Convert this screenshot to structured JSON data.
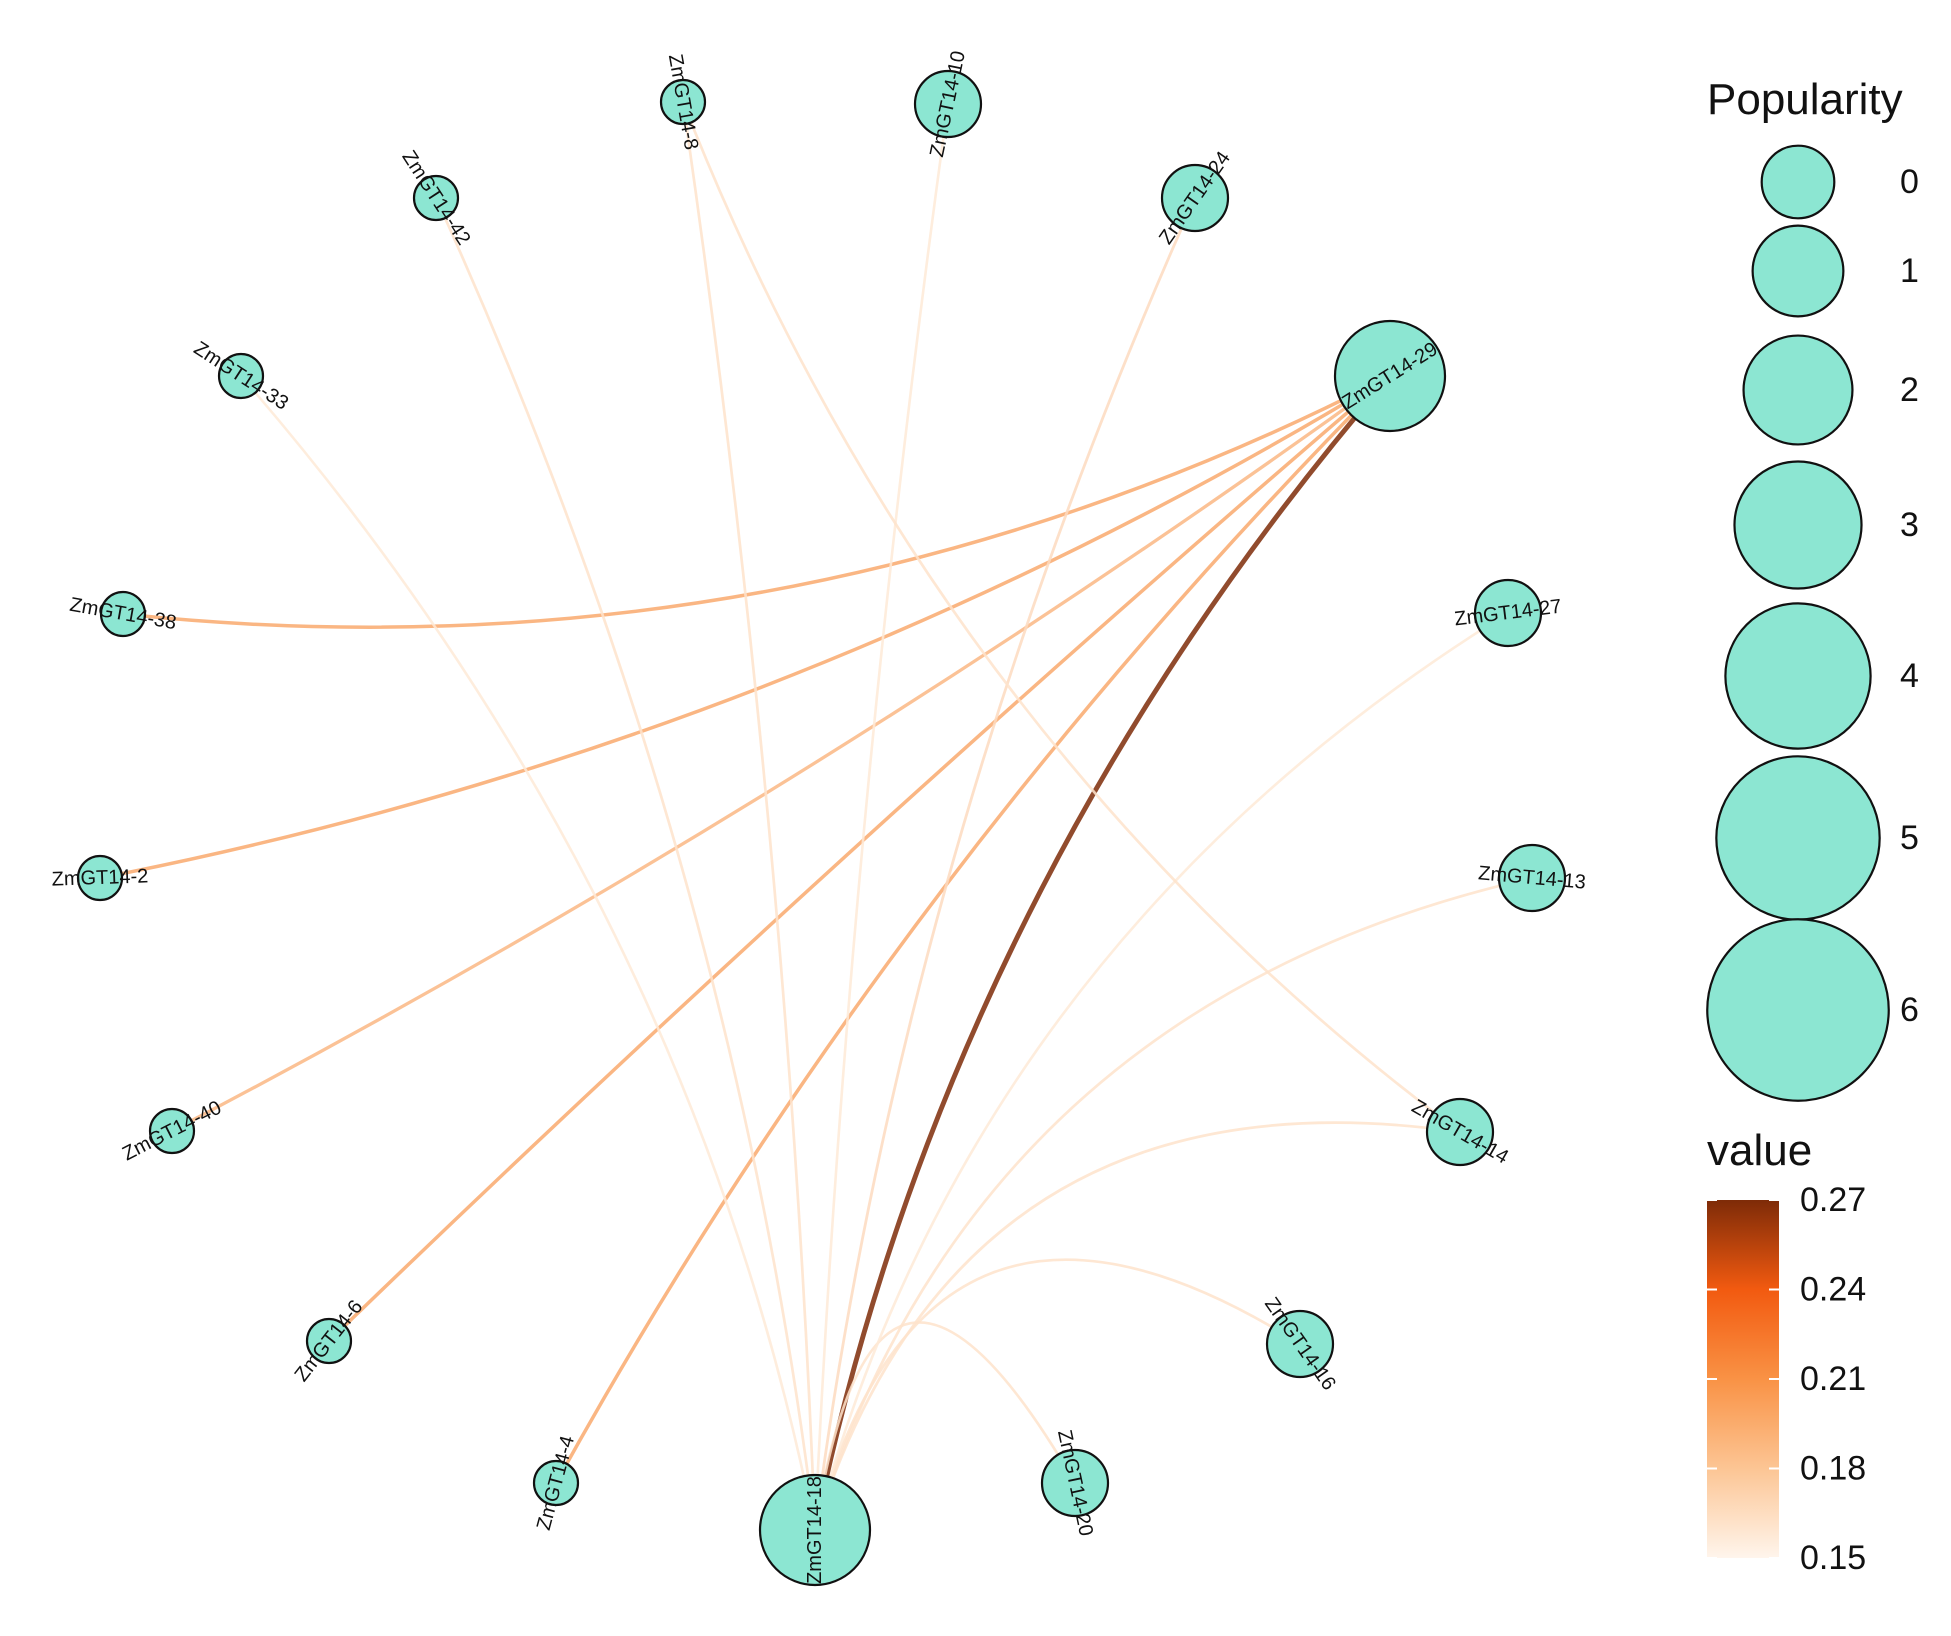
{
  "colors": {
    "node_fill": "#8ce6d2",
    "node_stroke": "#111111",
    "edge_low": "#fff1e3",
    "edge_mid": "#f89a55",
    "edge_high": "#7e2b08"
  },
  "nodes": [
    {
      "id": "ZmGT14-18",
      "label": "ZmGT14-18",
      "popularity": 6
    },
    {
      "id": "ZmGT14-20",
      "label": "ZmGT14-20",
      "popularity": 2
    },
    {
      "id": "ZmGT14-16",
      "label": "ZmGT14-16",
      "popularity": 2
    },
    {
      "id": "ZmGT14-14",
      "label": "ZmGT14-14",
      "popularity": 2
    },
    {
      "id": "ZmGT14-13",
      "label": "ZmGT14-13",
      "popularity": 2
    },
    {
      "id": "ZmGT14-27",
      "label": "ZmGT14-27",
      "popularity": 2
    },
    {
      "id": "ZmGT14-29",
      "label": "ZmGT14-29",
      "popularity": 6
    },
    {
      "id": "ZmGT14-24",
      "label": "ZmGT14-24",
      "popularity": 2
    },
    {
      "id": "ZmGT14-10",
      "label": "ZmGT14-10",
      "popularity": 2
    },
    {
      "id": "ZmGT14-8",
      "label": "ZmGT14-8",
      "popularity": 0
    },
    {
      "id": "ZmGT14-42",
      "label": "ZmGT14-42",
      "popularity": 0
    },
    {
      "id": "ZmGT14-33",
      "label": "ZmGT14-33",
      "popularity": 0
    },
    {
      "id": "ZmGT14-38",
      "label": "ZmGT14-38",
      "popularity": 0
    },
    {
      "id": "ZmGT14-2",
      "label": "ZmGT14-2",
      "popularity": 0
    },
    {
      "id": "ZmGT14-40",
      "label": "ZmGT14-40",
      "popularity": 0
    },
    {
      "id": "ZmGT14-6",
      "label": "ZmGT14-6",
      "popularity": 0
    },
    {
      "id": "ZmGT14-4",
      "label": "ZmGT14-4",
      "popularity": 0
    }
  ],
  "edges": [
    {
      "source": "ZmGT14-29",
      "target": "ZmGT14-18",
      "value": 0.27
    },
    {
      "source": "ZmGT14-29",
      "target": "ZmGT14-38",
      "value": 0.2
    },
    {
      "source": "ZmGT14-29",
      "target": "ZmGT14-2",
      "value": 0.2
    },
    {
      "source": "ZmGT14-29",
      "target": "ZmGT14-40",
      "value": 0.19
    },
    {
      "source": "ZmGT14-29",
      "target": "ZmGT14-6",
      "value": 0.2
    },
    {
      "source": "ZmGT14-29",
      "target": "ZmGT14-4",
      "value": 0.2
    },
    {
      "source": "ZmGT14-18",
      "target": "ZmGT14-20",
      "value": 0.16
    },
    {
      "source": "ZmGT14-18",
      "target": "ZmGT14-16",
      "value": 0.16
    },
    {
      "source": "ZmGT14-18",
      "target": "ZmGT14-14",
      "value": 0.16
    },
    {
      "source": "ZmGT14-18",
      "target": "ZmGT14-13",
      "value": 0.16
    },
    {
      "source": "ZmGT14-18",
      "target": "ZmGT14-27",
      "value": 0.155
    },
    {
      "source": "ZmGT14-18",
      "target": "ZmGT14-24",
      "value": 0.165
    },
    {
      "source": "ZmGT14-18",
      "target": "ZmGT14-10",
      "value": 0.155
    },
    {
      "source": "ZmGT14-18",
      "target": "ZmGT14-8",
      "value": 0.16
    },
    {
      "source": "ZmGT14-18",
      "target": "ZmGT14-42",
      "value": 0.16
    },
    {
      "source": "ZmGT14-18",
      "target": "ZmGT14-33",
      "value": 0.155
    },
    {
      "source": "ZmGT14-14",
      "target": "ZmGT14-8",
      "value": 0.16
    }
  ],
  "legend": {
    "size_title": "Popularity",
    "size_values": [
      0,
      1,
      2,
      3,
      4,
      5,
      6
    ],
    "color_title": "value",
    "color_ticks": [
      "0.27",
      "0.24",
      "0.21",
      "0.18",
      "0.15"
    ],
    "color_min": 0.15,
    "color_max": 0.27
  }
}
